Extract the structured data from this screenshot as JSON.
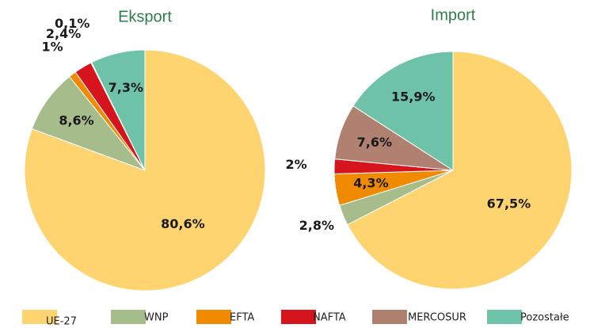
{
  "chart_data": [
    {
      "type": "pie",
      "title": "Eksport",
      "categories": [
        "UE-27",
        "WNP",
        "EFTA",
        "NAFTA",
        "MERCOSUR",
        "Pozostałe"
      ],
      "values": [
        80.6,
        8.6,
        1,
        2.4,
        0.1,
        7.3
      ],
      "value_labels": [
        "80,6%",
        "8,6%",
        "1%",
        "2,4%",
        "0,1%",
        "7,3%"
      ],
      "colors": [
        "#fdd46f",
        "#a6bd8b",
        "#f08a00",
        "#d5141e",
        "#b08070",
        "#6dc2a7"
      ]
    },
    {
      "type": "pie",
      "title": "Import",
      "categories": [
        "UE-27",
        "WNP",
        "EFTA",
        "NAFTA",
        "MERCOSUR",
        "Pozostałe"
      ],
      "values": [
        67.5,
        2.8,
        4.3,
        2,
        7.6,
        15.9
      ],
      "value_labels": [
        "67,5%",
        "2,8%",
        "4,3%",
        "2%",
        "7,6%",
        "15,9%"
      ],
      "colors": [
        "#fdd46f",
        "#a6bd8b",
        "#f08a00",
        "#d5141e",
        "#b08070",
        "#6dc2a7"
      ]
    }
  ]
}
